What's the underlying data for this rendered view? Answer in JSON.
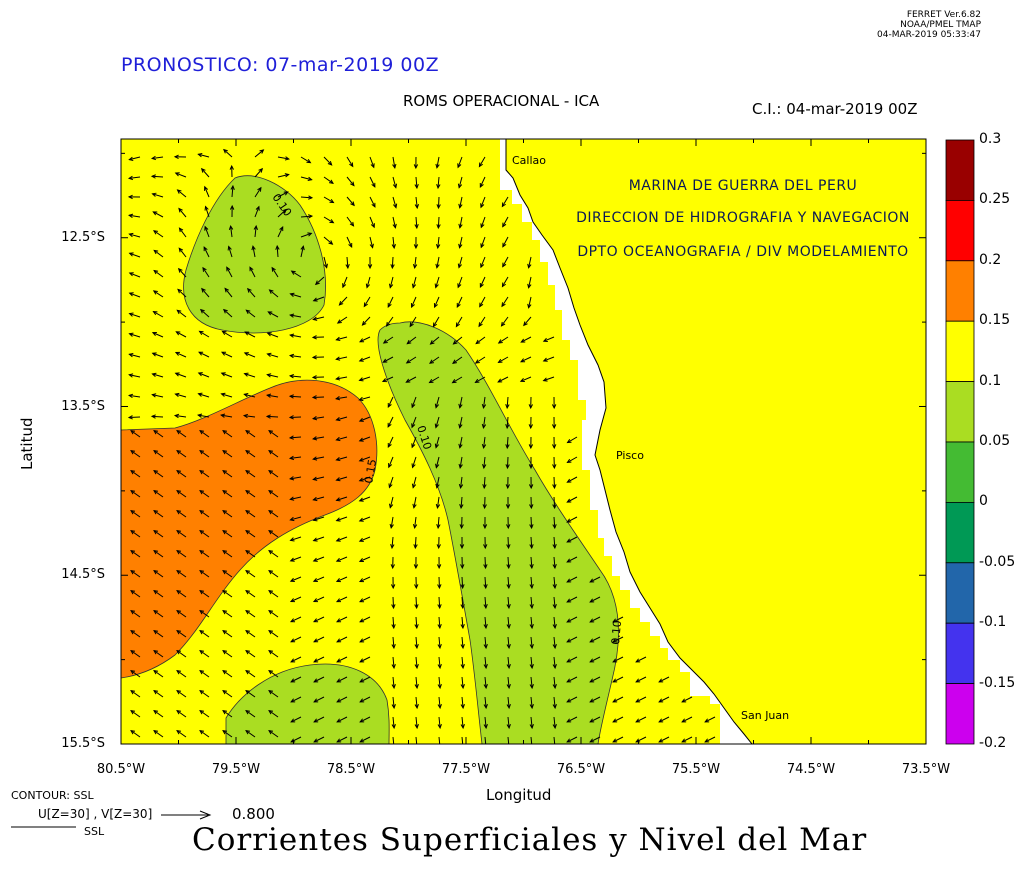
{
  "ferret": {
    "version": "FERRET  Ver.6.82",
    "lab": "NOAA/PMEL TMAP",
    "stamp": "04-MAR-2019 05:33:47"
  },
  "forecast_title": "PRONOSTICO: 07-mar-2019 00Z",
  "subtitle": "ROMS OPERACIONAL - ICA",
  "initial_condition": "C.I.: 04-mar-2019 00Z",
  "axis": {
    "x_label": "Longitud",
    "y_label": "Latitud",
    "x_ticks": [
      "80.5°W",
      "79.5°W",
      "78.5°W",
      "77.5°W",
      "76.5°W",
      "75.5°W",
      "74.5°W",
      "73.5°W"
    ],
    "y_ticks": [
      "12.5°S",
      "13.5°S",
      "14.5°S",
      "15.5°S"
    ],
    "lon_range": [
      -80.5,
      -73.5
    ],
    "lat_range": [
      -15.5,
      -11.9
    ]
  },
  "agency": {
    "line1": "MARINA DE GUERRA DEL PERU",
    "line2": "DIRECCION DE HIDROGRAFIA Y NAVEGACION",
    "line3": "DPTO OCEANOGRAFIA / DIV MODELAMIENTO"
  },
  "places": {
    "callao": "Callao",
    "pisco": "Pisco",
    "san_juan": "San Juan"
  },
  "contour_labels": [
    "0.10",
    "0.10",
    "0.15",
    "0.10"
  ],
  "colorbar": {
    "levels": [
      "0.3",
      "0.25",
      "0.2",
      "0.15",
      "0.1",
      "0.05",
      "0",
      "-0.05",
      "-0.1",
      "-0.15",
      "-0.2"
    ],
    "colors": [
      "#990000",
      "#ff0000",
      "#ff8000",
      "#ffff00",
      "#aadd22",
      "#44bb33",
      "#009955",
      "#2266aa",
      "#4433ee",
      "#cc00ee"
    ]
  },
  "legend": {
    "contour_line": "CONTOUR: SSL",
    "vector_line": "U[Z=30] , V[Z=30]",
    "vector_scale": "0.800",
    "ssl": "SSL"
  },
  "main_title": "Corrientes Superficiales y Nivel del Mar",
  "field_colors": {
    "ssl_0.10_0.15": "#ffff00",
    "ssl_0.05_0.10": "#aadd22",
    "ssl_0.15_0.20": "#ff8000",
    "land": "#ffff00",
    "coast_mask": "#ffffff"
  }
}
